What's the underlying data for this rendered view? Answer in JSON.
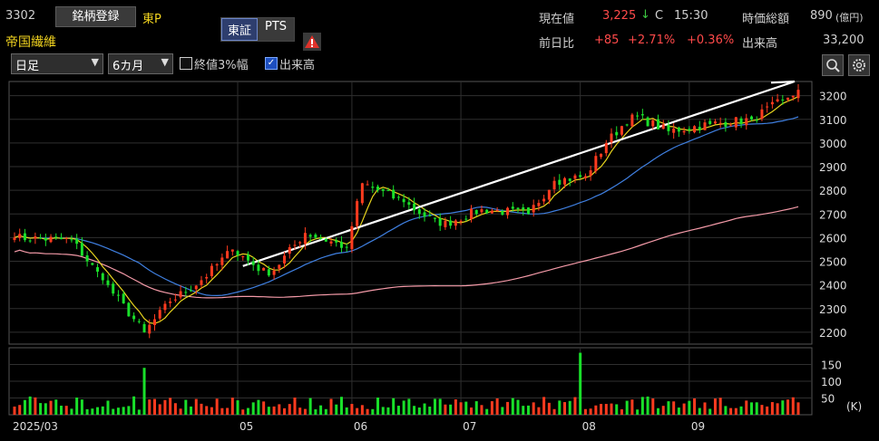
{
  "header": {
    "code": "3302",
    "register_button": "銘柄登録",
    "market": "東P",
    "company_name": "帝国繊維",
    "exchange_tabs": [
      "東証",
      "PTS"
    ],
    "warning_icon": "warning-icon",
    "price_label": "現在値",
    "price": "3,225",
    "price_arrow": "↓",
    "price_flag": "C",
    "time": "15:30",
    "change_label": "前日比",
    "change": "+85",
    "change_pct": "+2.71%",
    "change_pct2": "+0.36%",
    "marketcap_label": "時価総額",
    "marketcap": "890",
    "marketcap_unit": "(億円)",
    "volume_label": "出来高",
    "volume": "33,200"
  },
  "controls": {
    "period_select": "日足",
    "range_select": "6カ月",
    "checkbox1_label": "終値3%幅",
    "checkbox1_checked": false,
    "checkbox2_label": "出来高",
    "checkbox2_checked": true,
    "zoom_icon": "magnifier-icon",
    "settings_icon": "gear-icon"
  },
  "colors": {
    "up": "#ff3b1f",
    "down": "#19e02a",
    "ma_short": "#e8d51e",
    "ma_mid": "#3f7fe0",
    "ma_long": "#f49aa8",
    "trendline": "#ffffff",
    "grid": "#2f2f2f"
  },
  "chart_data": {
    "type": "candlestick",
    "price_axis": {
      "ticks": [
        2200,
        2300,
        2400,
        2500,
        2600,
        2700,
        2800,
        2900,
        3000,
        3100,
        3200
      ],
      "range": [
        2150,
        3260
      ]
    },
    "volume_axis": {
      "ticks": [
        "150",
        "100",
        "50"
      ],
      "unit": "(K)",
      "range": [
        0,
        200
      ]
    },
    "x_labels": [
      "2025/03",
      "05",
      "06",
      "07",
      "08",
      "09"
    ],
    "x_label_dates": [
      "2025-03-03",
      "2025-05-01",
      "2025-06-02",
      "2025-07-01",
      "2025-08-01",
      "2025-09-01"
    ],
    "key_closes": [
      {
        "date": "2025-03-03",
        "close": 2600
      },
      {
        "date": "2025-03-18",
        "close": 2590
      },
      {
        "date": "2025-03-26",
        "close": 2420
      },
      {
        "date": "2025-04-07",
        "close": 2200
      },
      {
        "date": "2025-04-14",
        "close": 2330
      },
      {
        "date": "2025-04-22",
        "close": 2420
      },
      {
        "date": "2025-04-30",
        "close": 2550
      },
      {
        "date": "2025-05-09",
        "close": 2440
      },
      {
        "date": "2025-05-20",
        "close": 2620
      },
      {
        "date": "2025-05-30",
        "close": 2560
      },
      {
        "date": "2025-06-04",
        "close": 2830
      },
      {
        "date": "2025-06-16",
        "close": 2750
      },
      {
        "date": "2025-06-25",
        "close": 2650
      },
      {
        "date": "2025-07-07",
        "close": 2720
      },
      {
        "date": "2025-07-18",
        "close": 2700
      },
      {
        "date": "2025-07-25",
        "close": 2840
      },
      {
        "date": "2025-08-04",
        "close": 2860
      },
      {
        "date": "2025-08-08",
        "close": 3000
      },
      {
        "date": "2025-08-15",
        "close": 3120
      },
      {
        "date": "2025-08-26",
        "close": 3050
      },
      {
        "date": "2025-09-05",
        "close": 3080
      },
      {
        "date": "2025-09-17",
        "close": 3100
      },
      {
        "date": "2025-09-25",
        "close": 3180
      },
      {
        "date": "2025-09-30",
        "close": 3225
      }
    ],
    "volume_peaks_k": [
      {
        "date": "2025-04-07",
        "volume": 140
      },
      {
        "date": "2025-08-01",
        "volume": 185
      }
    ]
  }
}
